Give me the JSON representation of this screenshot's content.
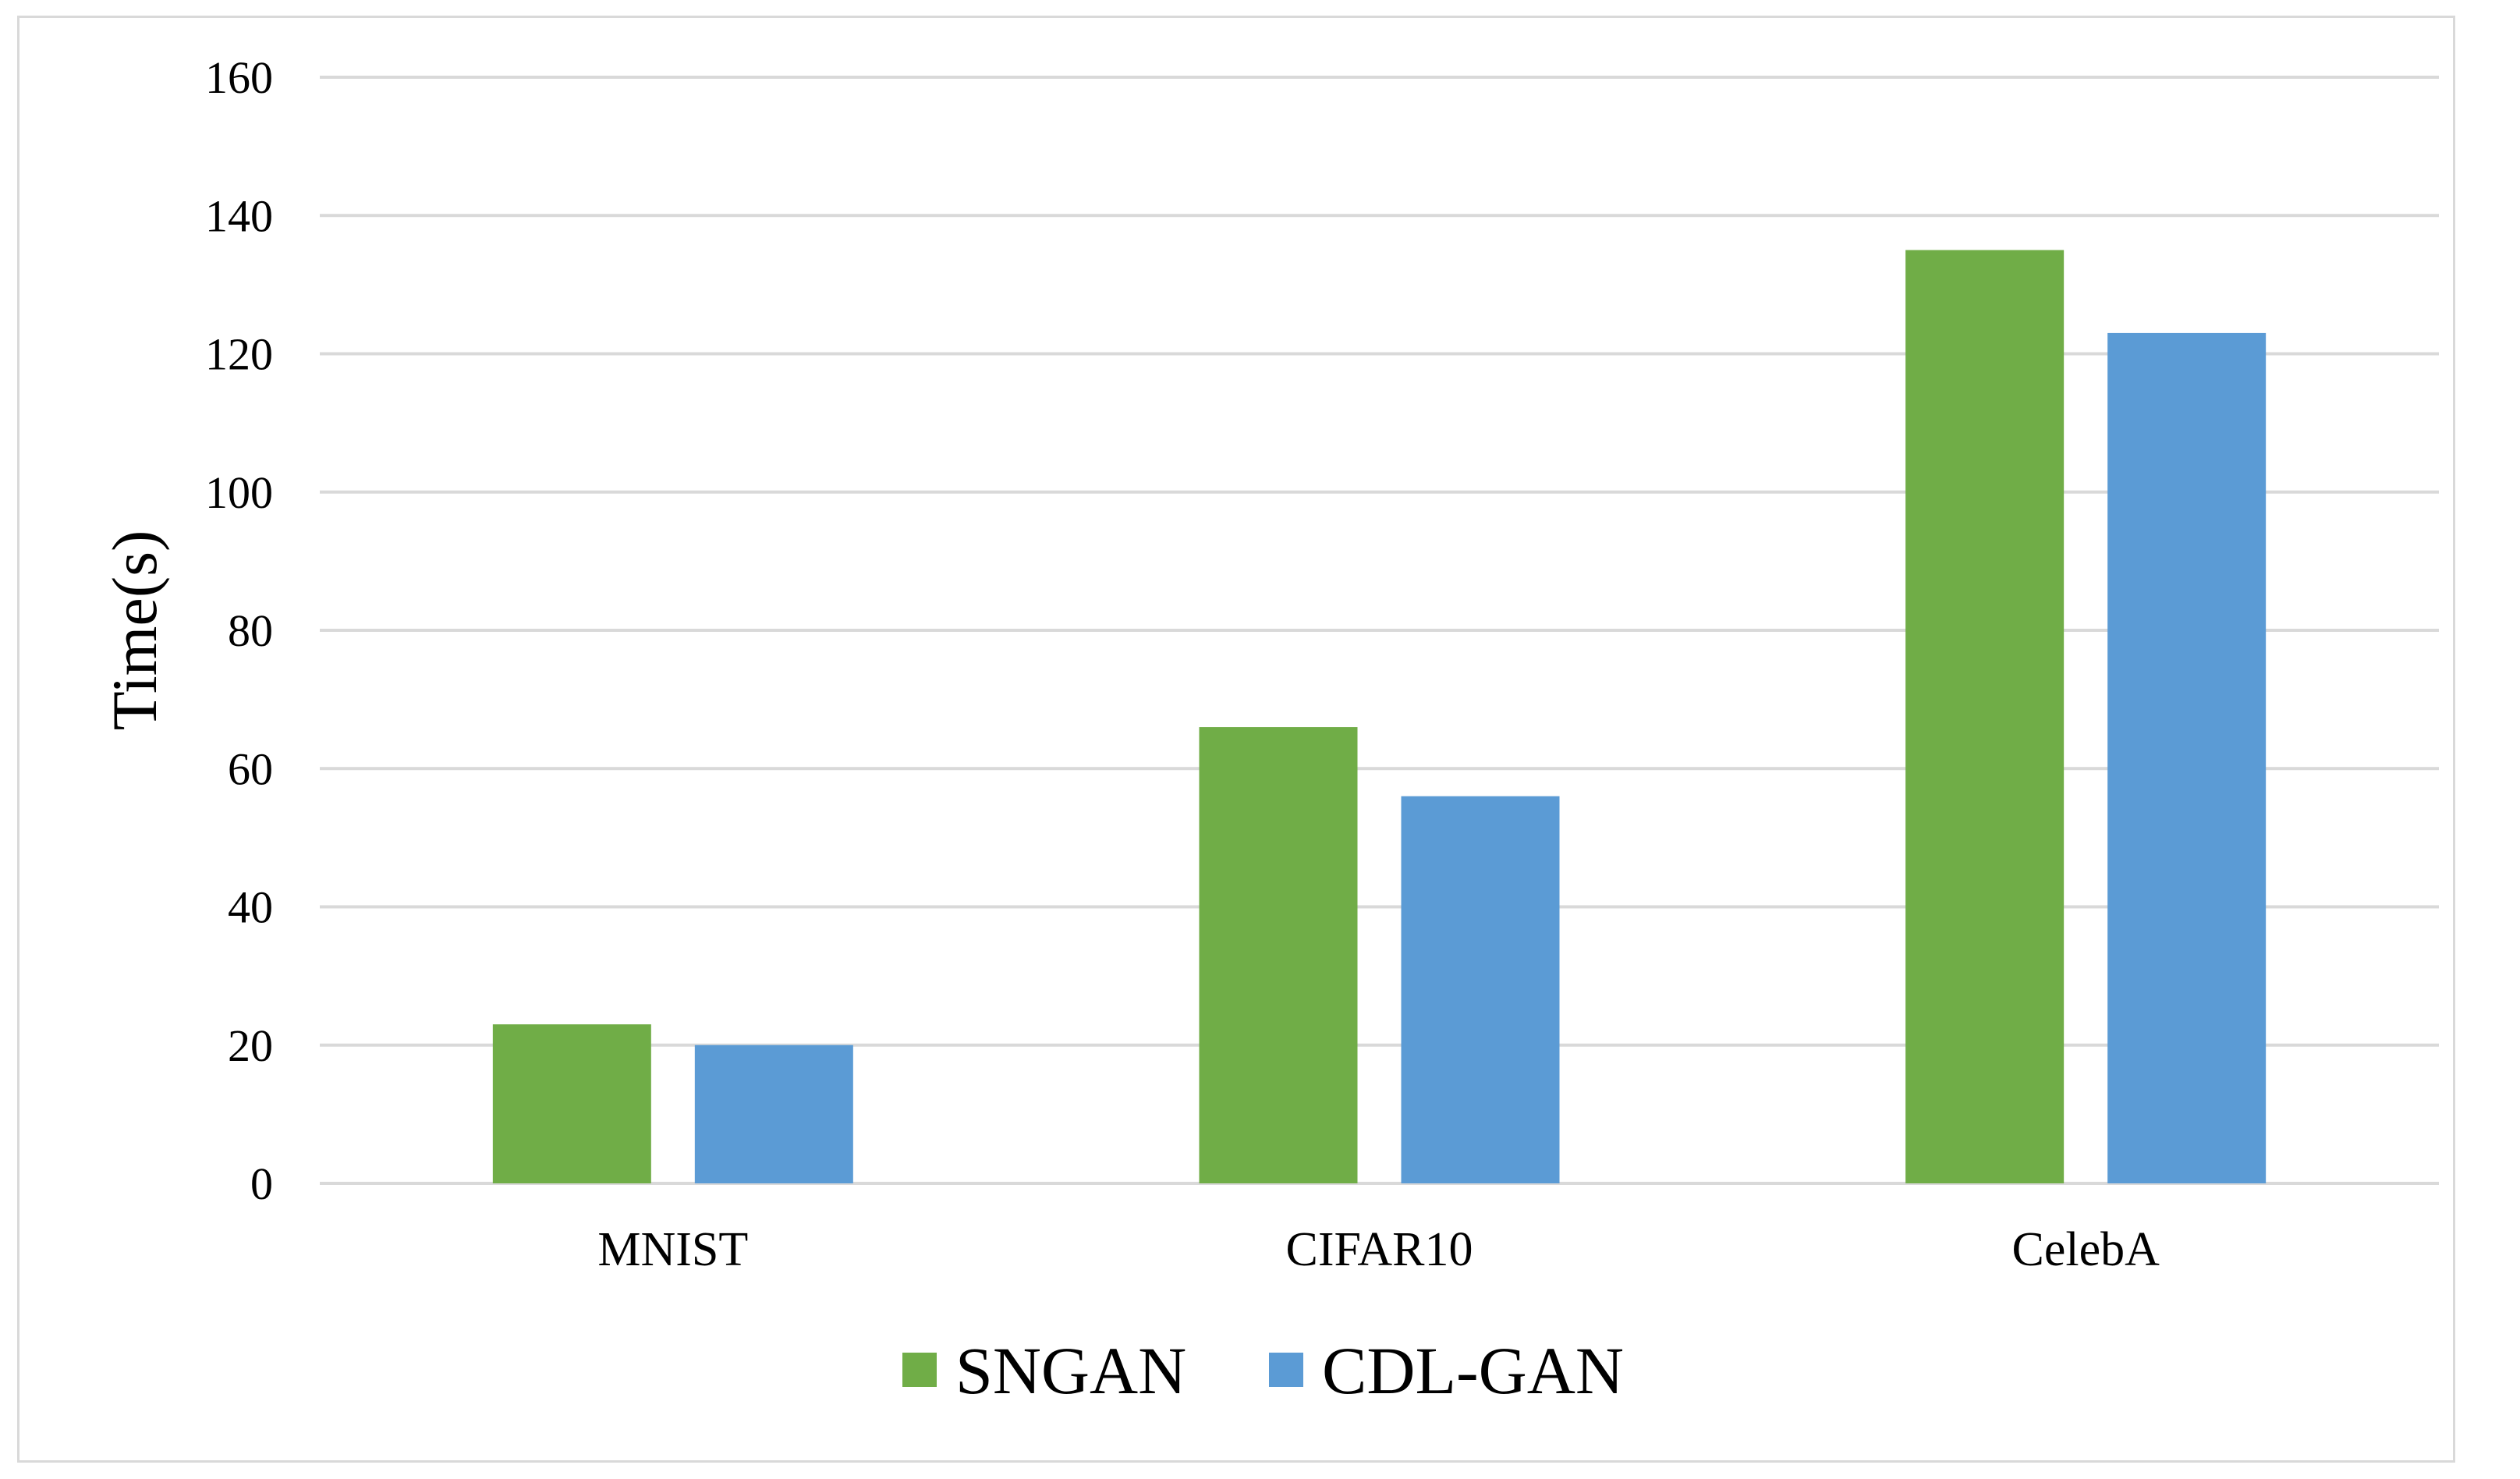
{
  "chart_data": {
    "type": "bar",
    "title": "",
    "xlabel": "",
    "ylabel": "Time(s)",
    "ylim": [
      0,
      160
    ],
    "yticks": [
      0,
      20,
      40,
      60,
      80,
      100,
      120,
      140,
      160
    ],
    "grid": true,
    "legend_position": "bottom-center",
    "categories": [
      "MNIST",
      "CIFAR10",
      "CelebA"
    ],
    "series": [
      {
        "name": "SNGAN",
        "color": "#70ad47",
        "values": [
          23,
          66,
          135
        ]
      },
      {
        "name": "CDL-GAN",
        "color": "#5b9bd5",
        "values": [
          20,
          56,
          123
        ]
      }
    ]
  }
}
